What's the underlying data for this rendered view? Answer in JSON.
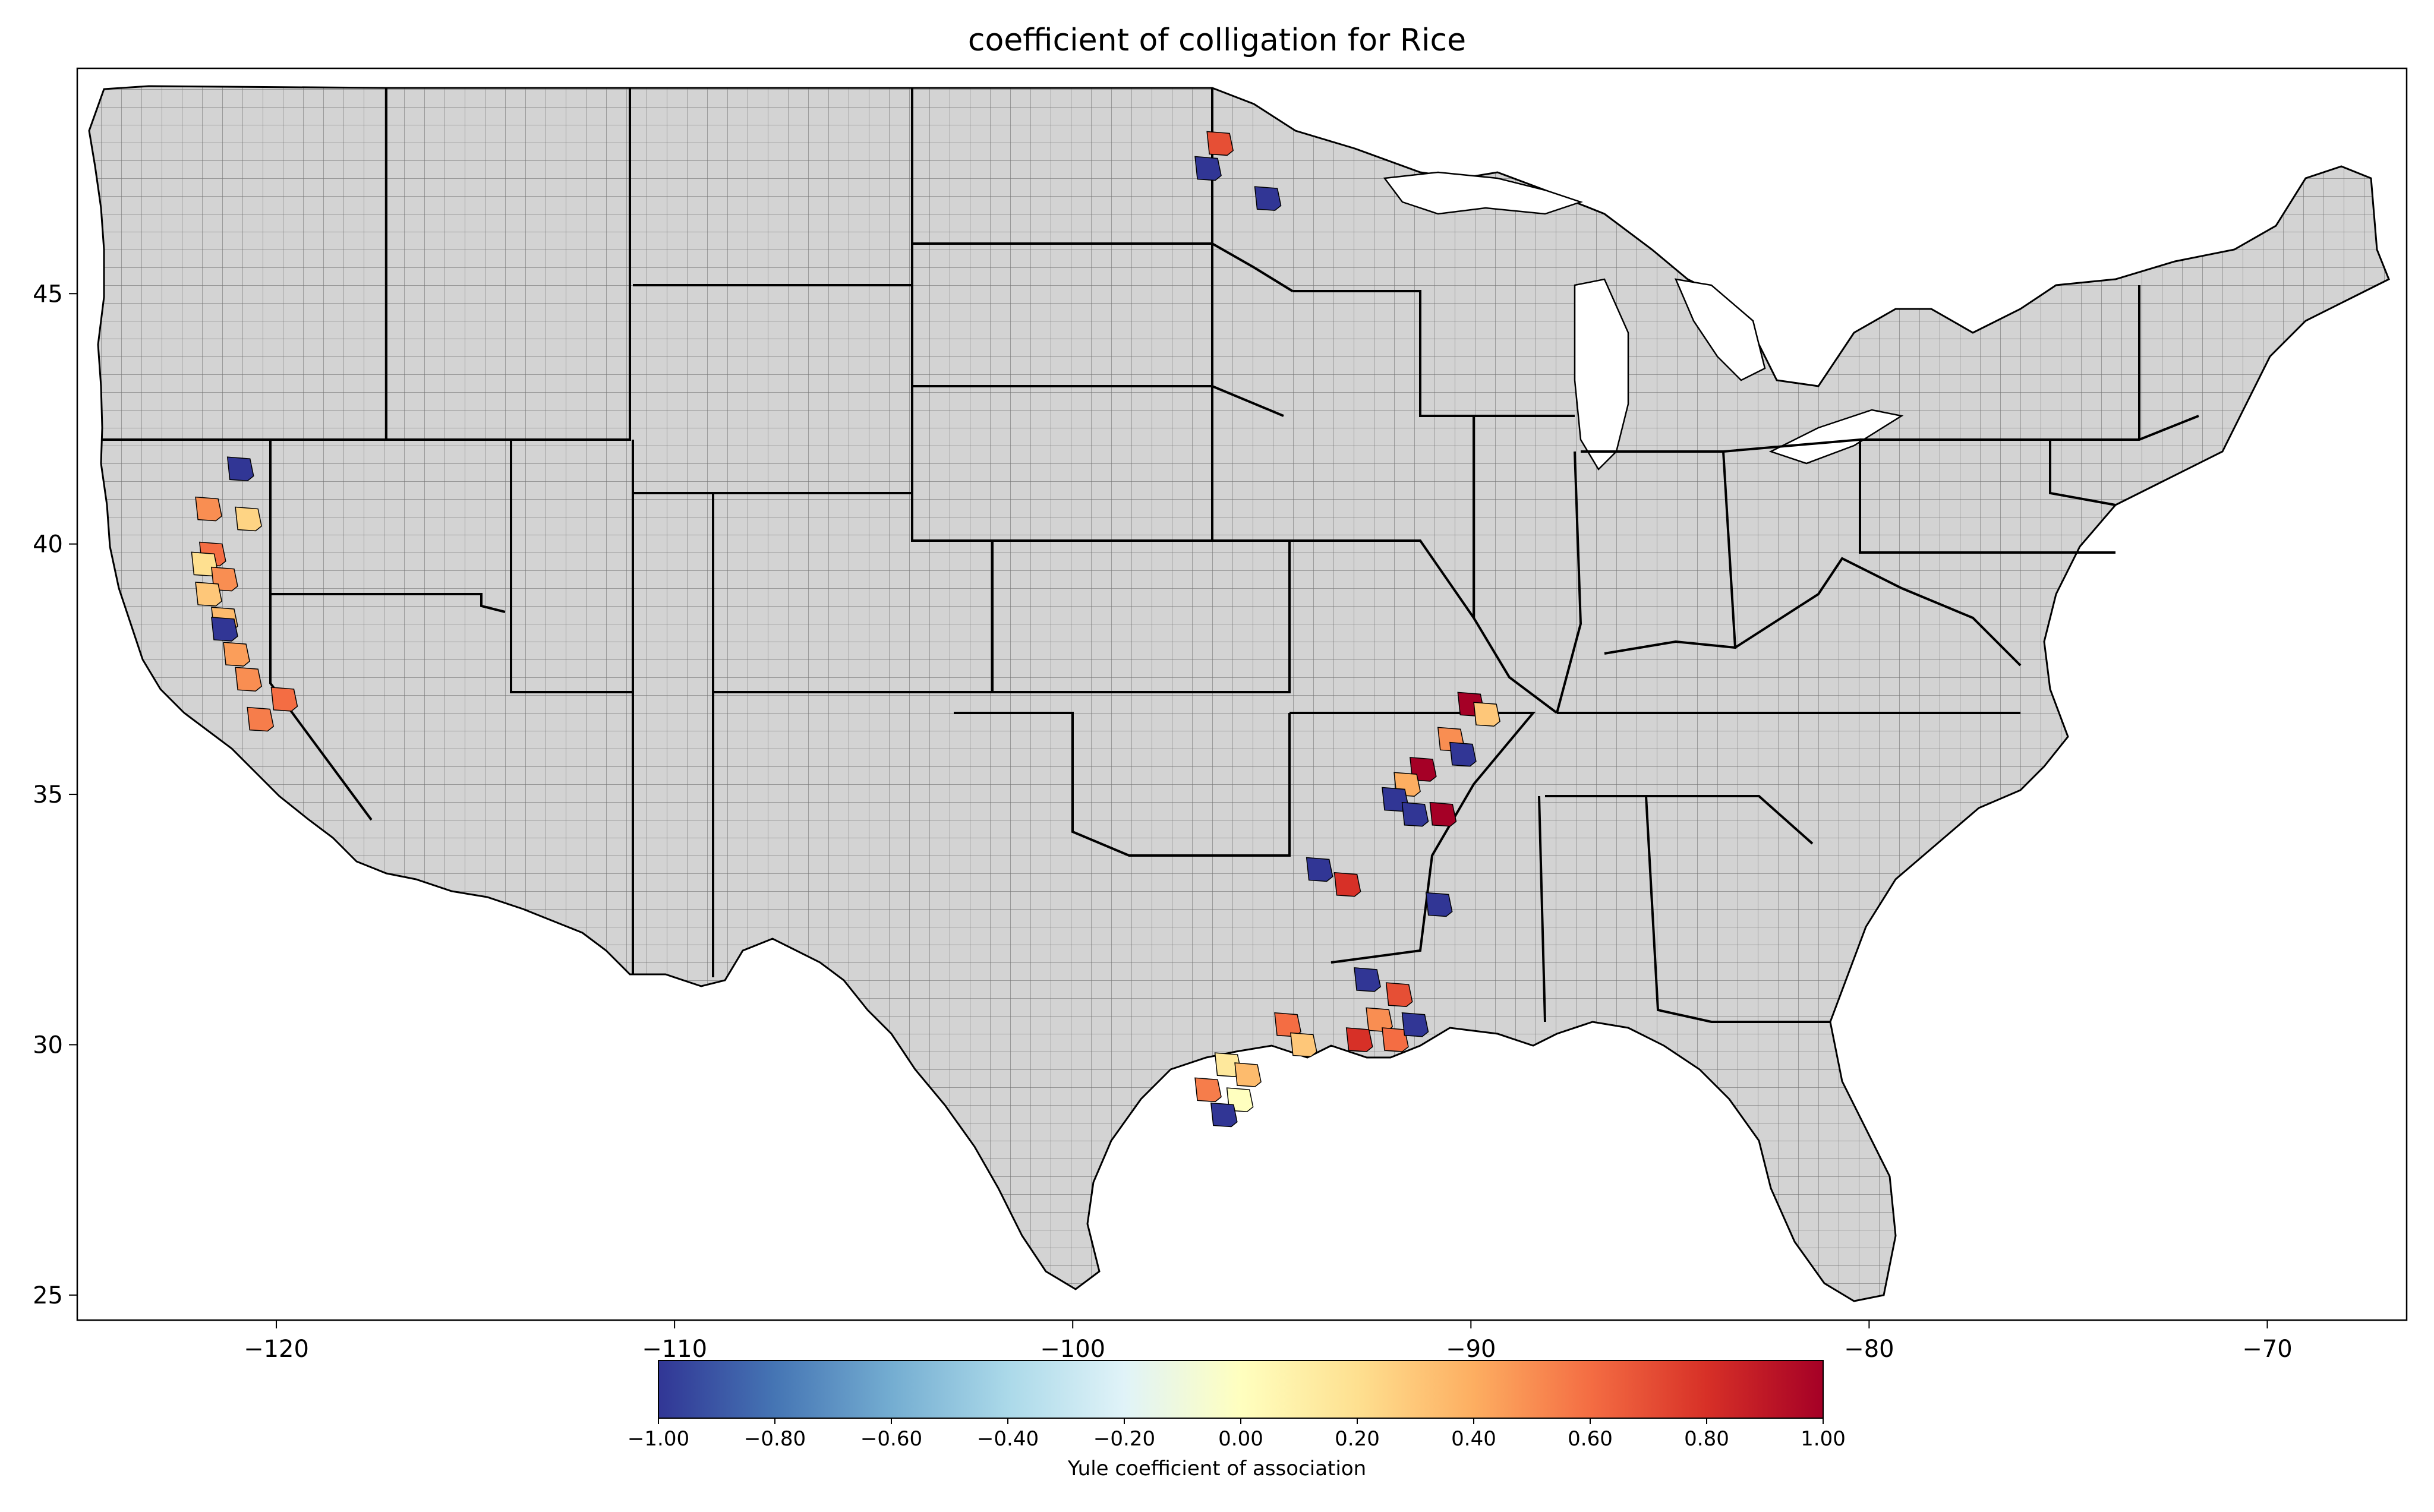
{
  "title": "coefficient of colligation for Rice",
  "colors": {
    "land": "#d3d3d3",
    "county_border": "#000000",
    "state_border": "#000000",
    "frame": "#000000"
  },
  "axes": {
    "x_ticks": [
      "−120",
      "−110",
      "−100",
      "−90",
      "−80",
      "−70"
    ],
    "y_ticks": [
      "45",
      "40",
      "35",
      "30",
      "25"
    ]
  },
  "colorbar": {
    "label": "Yule coefficient of association",
    "ticks": [
      "−1.00",
      "−0.80",
      "−0.60",
      "−0.40",
      "−0.20",
      "0.00",
      "0.20",
      "0.40",
      "0.60",
      "0.80",
      "1.00"
    ],
    "range": [
      -1.0,
      1.0
    ],
    "colormap": "RdYlBu_r",
    "stops": [
      "#313695",
      "#4575b4",
      "#74add1",
      "#abd9e9",
      "#e0f3f8",
      "#ffffbf",
      "#fee090",
      "#fdae61",
      "#f46d43",
      "#d73027",
      "#a50026"
    ]
  },
  "chart_data": {
    "type": "choropleth",
    "title": "coefficient of colligation for Rice",
    "xlim": [
      -125,
      -66.5
    ],
    "ylim": [
      24.5,
      49.5
    ],
    "x_ticks": [
      -120,
      -110,
      -100,
      -90,
      -80,
      -70
    ],
    "y_ticks": [
      25,
      30,
      35,
      40,
      45
    ],
    "colorbar_label": "Yule coefficient of association",
    "colorbar_range": [
      -1.0,
      1.0
    ],
    "highlighted_regions": [
      {
        "lon": -120.9,
        "lat": 41.5,
        "value": -1.0
      },
      {
        "lon": -121.7,
        "lat": 40.7,
        "value": 0.5
      },
      {
        "lon": -120.7,
        "lat": 40.5,
        "value": 0.25
      },
      {
        "lon": -121.6,
        "lat": 39.8,
        "value": 0.6
      },
      {
        "lon": -121.8,
        "lat": 39.6,
        "value": 0.2
      },
      {
        "lon": -121.3,
        "lat": 39.3,
        "value": 0.5
      },
      {
        "lon": -121.7,
        "lat": 39.0,
        "value": 0.3
      },
      {
        "lon": -121.3,
        "lat": 38.5,
        "value": 0.35
      },
      {
        "lon": -121.3,
        "lat": 38.3,
        "value": -1.0
      },
      {
        "lon": -121.0,
        "lat": 37.8,
        "value": 0.45
      },
      {
        "lon": -120.7,
        "lat": 37.3,
        "value": 0.5
      },
      {
        "lon": -119.8,
        "lat": 36.9,
        "value": 0.6
      },
      {
        "lon": -120.4,
        "lat": 36.5,
        "value": 0.55
      },
      {
        "lon": -96.3,
        "lat": 48.0,
        "value": 0.7
      },
      {
        "lon": -96.6,
        "lat": 47.5,
        "value": -1.0
      },
      {
        "lon": -95.1,
        "lat": 46.9,
        "value": -1.0
      },
      {
        "lon": -90.0,
        "lat": 36.8,
        "value": 1.0
      },
      {
        "lon": -89.6,
        "lat": 36.6,
        "value": 0.3
      },
      {
        "lon": -90.5,
        "lat": 36.1,
        "value": 0.5
      },
      {
        "lon": -90.2,
        "lat": 35.8,
        "value": -1.0
      },
      {
        "lon": -91.2,
        "lat": 35.5,
        "value": 1.0
      },
      {
        "lon": -91.6,
        "lat": 35.2,
        "value": 0.4
      },
      {
        "lon": -91.9,
        "lat": 34.9,
        "value": -1.0
      },
      {
        "lon": -91.4,
        "lat": 34.6,
        "value": -1.0
      },
      {
        "lon": -90.7,
        "lat": 34.6,
        "value": 1.0
      },
      {
        "lon": -93.8,
        "lat": 33.5,
        "value": -1.0
      },
      {
        "lon": -93.1,
        "lat": 33.2,
        "value": 0.8
      },
      {
        "lon": -90.8,
        "lat": 32.8,
        "value": -1.0
      },
      {
        "lon": -92.6,
        "lat": 31.3,
        "value": -1.0
      },
      {
        "lon": -91.8,
        "lat": 31.0,
        "value": 0.7
      },
      {
        "lon": -92.3,
        "lat": 30.5,
        "value": 0.5
      },
      {
        "lon": -92.8,
        "lat": 30.1,
        "value": 0.8
      },
      {
        "lon": -91.9,
        "lat": 30.1,
        "value": 0.6
      },
      {
        "lon": -91.4,
        "lat": 30.4,
        "value": -1.0
      },
      {
        "lon": -94.6,
        "lat": 30.4,
        "value": 0.6
      },
      {
        "lon": -94.2,
        "lat": 30.0,
        "value": 0.3
      },
      {
        "lon": -96.1,
        "lat": 29.6,
        "value": 0.15
      },
      {
        "lon": -95.6,
        "lat": 29.4,
        "value": 0.35
      },
      {
        "lon": -96.6,
        "lat": 29.1,
        "value": 0.55
      },
      {
        "lon": -95.8,
        "lat": 28.9,
        "value": 0.0
      },
      {
        "lon": -96.2,
        "lat": 28.6,
        "value": -1.0
      }
    ]
  }
}
